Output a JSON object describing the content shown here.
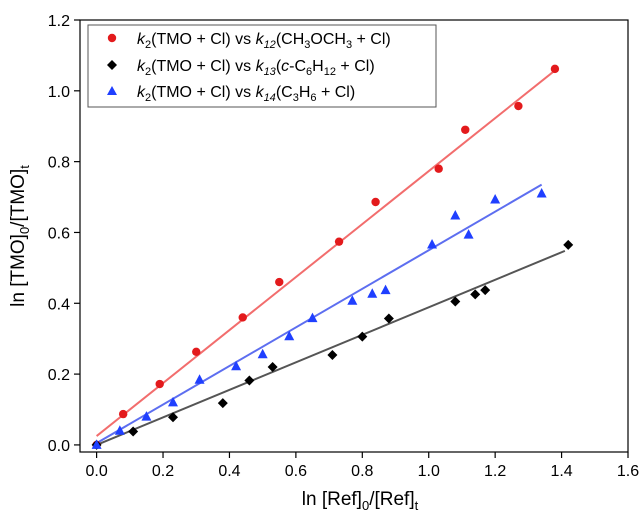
{
  "chart_data": {
    "type": "scatter",
    "xlim": [
      -0.05,
      1.6
    ],
    "ylim": [
      -0.02,
      1.2
    ],
    "x_ticks": [
      "0.0",
      "0.2",
      "0.4",
      "0.6",
      "0.8",
      "1.0",
      "1.2",
      "1.4",
      "1.6"
    ],
    "y_ticks": [
      "0.0",
      "0.2",
      "0.4",
      "0.6",
      "0.8",
      "1.0",
      "1.2"
    ],
    "grid": false,
    "legend_position": "top-left",
    "xlabel": {
      "main": "ln [Ref]",
      "sub1": "0",
      "mid": "/[Ref]",
      "sub2": "t"
    },
    "ylabel": {
      "main": "ln [TMO]",
      "sub1": "0",
      "mid": "/[TMO]",
      "sub2": "t"
    },
    "series": [
      {
        "legend": {
          "k": "k",
          "ksub": "2",
          "text1": "(TMO + Cl) vs ",
          "k2": "k",
          "k2sub": "12",
          "text2": "(CH",
          "s1": "3",
          "text3": "OCH",
          "s2": "3",
          "text4": " + Cl)"
        },
        "marker": "circle",
        "color": "#e31a1c",
        "line_color": "#f26d6d",
        "fit": [
          [
            0.0,
            0.025
          ],
          [
            1.39,
            1.065
          ]
        ],
        "points": [
          [
            0.0,
            0.0
          ],
          [
            0.08,
            0.087
          ],
          [
            0.19,
            0.172
          ],
          [
            0.3,
            0.263
          ],
          [
            0.44,
            0.36
          ],
          [
            0.55,
            0.46
          ],
          [
            0.73,
            0.574
          ],
          [
            0.84,
            0.686
          ],
          [
            1.03,
            0.78
          ],
          [
            1.11,
            0.89
          ],
          [
            1.27,
            0.957
          ],
          [
            1.38,
            1.062
          ]
        ]
      },
      {
        "legend": {
          "k": "k",
          "ksub": "2",
          "text1": "(TMO + Cl) vs ",
          "k2": "k",
          "k2sub": "13",
          "text2": "(",
          "italic": "c",
          "text3": "-C",
          "s1": "6",
          "text4": "H",
          "s2": "12",
          "text5": " + Cl)"
        },
        "marker": "diamond",
        "color": "#000000",
        "line_color": "#555555",
        "fit": [
          [
            0.0,
            0.0
          ],
          [
            1.41,
            0.548
          ]
        ],
        "points": [
          [
            0.0,
            0.0
          ],
          [
            0.11,
            0.038
          ],
          [
            0.23,
            0.078
          ],
          [
            0.38,
            0.118
          ],
          [
            0.46,
            0.182
          ],
          [
            0.53,
            0.22
          ],
          [
            0.71,
            0.254
          ],
          [
            0.8,
            0.306
          ],
          [
            0.88,
            0.357
          ],
          [
            1.08,
            0.405
          ],
          [
            1.14,
            0.425
          ],
          [
            1.17,
            0.437
          ],
          [
            1.42,
            0.565
          ]
        ]
      },
      {
        "legend": {
          "k": "k",
          "ksub": "2",
          "text1": "(TMO + Cl) vs ",
          "k2": "k",
          "k2sub": "14",
          "text2": "(C",
          "s1": "3",
          "text3": "H",
          "s2": "6",
          "text4": " + Cl)"
        },
        "marker": "triangle",
        "color": "#1f3fff",
        "line_color": "#5d6ef0",
        "fit": [
          [
            0.0,
            0.005
          ],
          [
            1.34,
            0.735
          ]
        ],
        "points": [
          [
            0.0,
            0.0
          ],
          [
            0.07,
            0.04
          ],
          [
            0.15,
            0.08
          ],
          [
            0.23,
            0.12
          ],
          [
            0.31,
            0.184
          ],
          [
            0.42,
            0.222
          ],
          [
            0.5,
            0.256
          ],
          [
            0.58,
            0.307
          ],
          [
            0.65,
            0.358
          ],
          [
            0.77,
            0.407
          ],
          [
            0.83,
            0.427
          ],
          [
            0.87,
            0.437
          ],
          [
            1.01,
            0.566
          ],
          [
            1.08,
            0.648
          ],
          [
            1.12,
            0.594
          ],
          [
            1.2,
            0.693
          ],
          [
            1.34,
            0.71
          ]
        ]
      }
    ]
  }
}
